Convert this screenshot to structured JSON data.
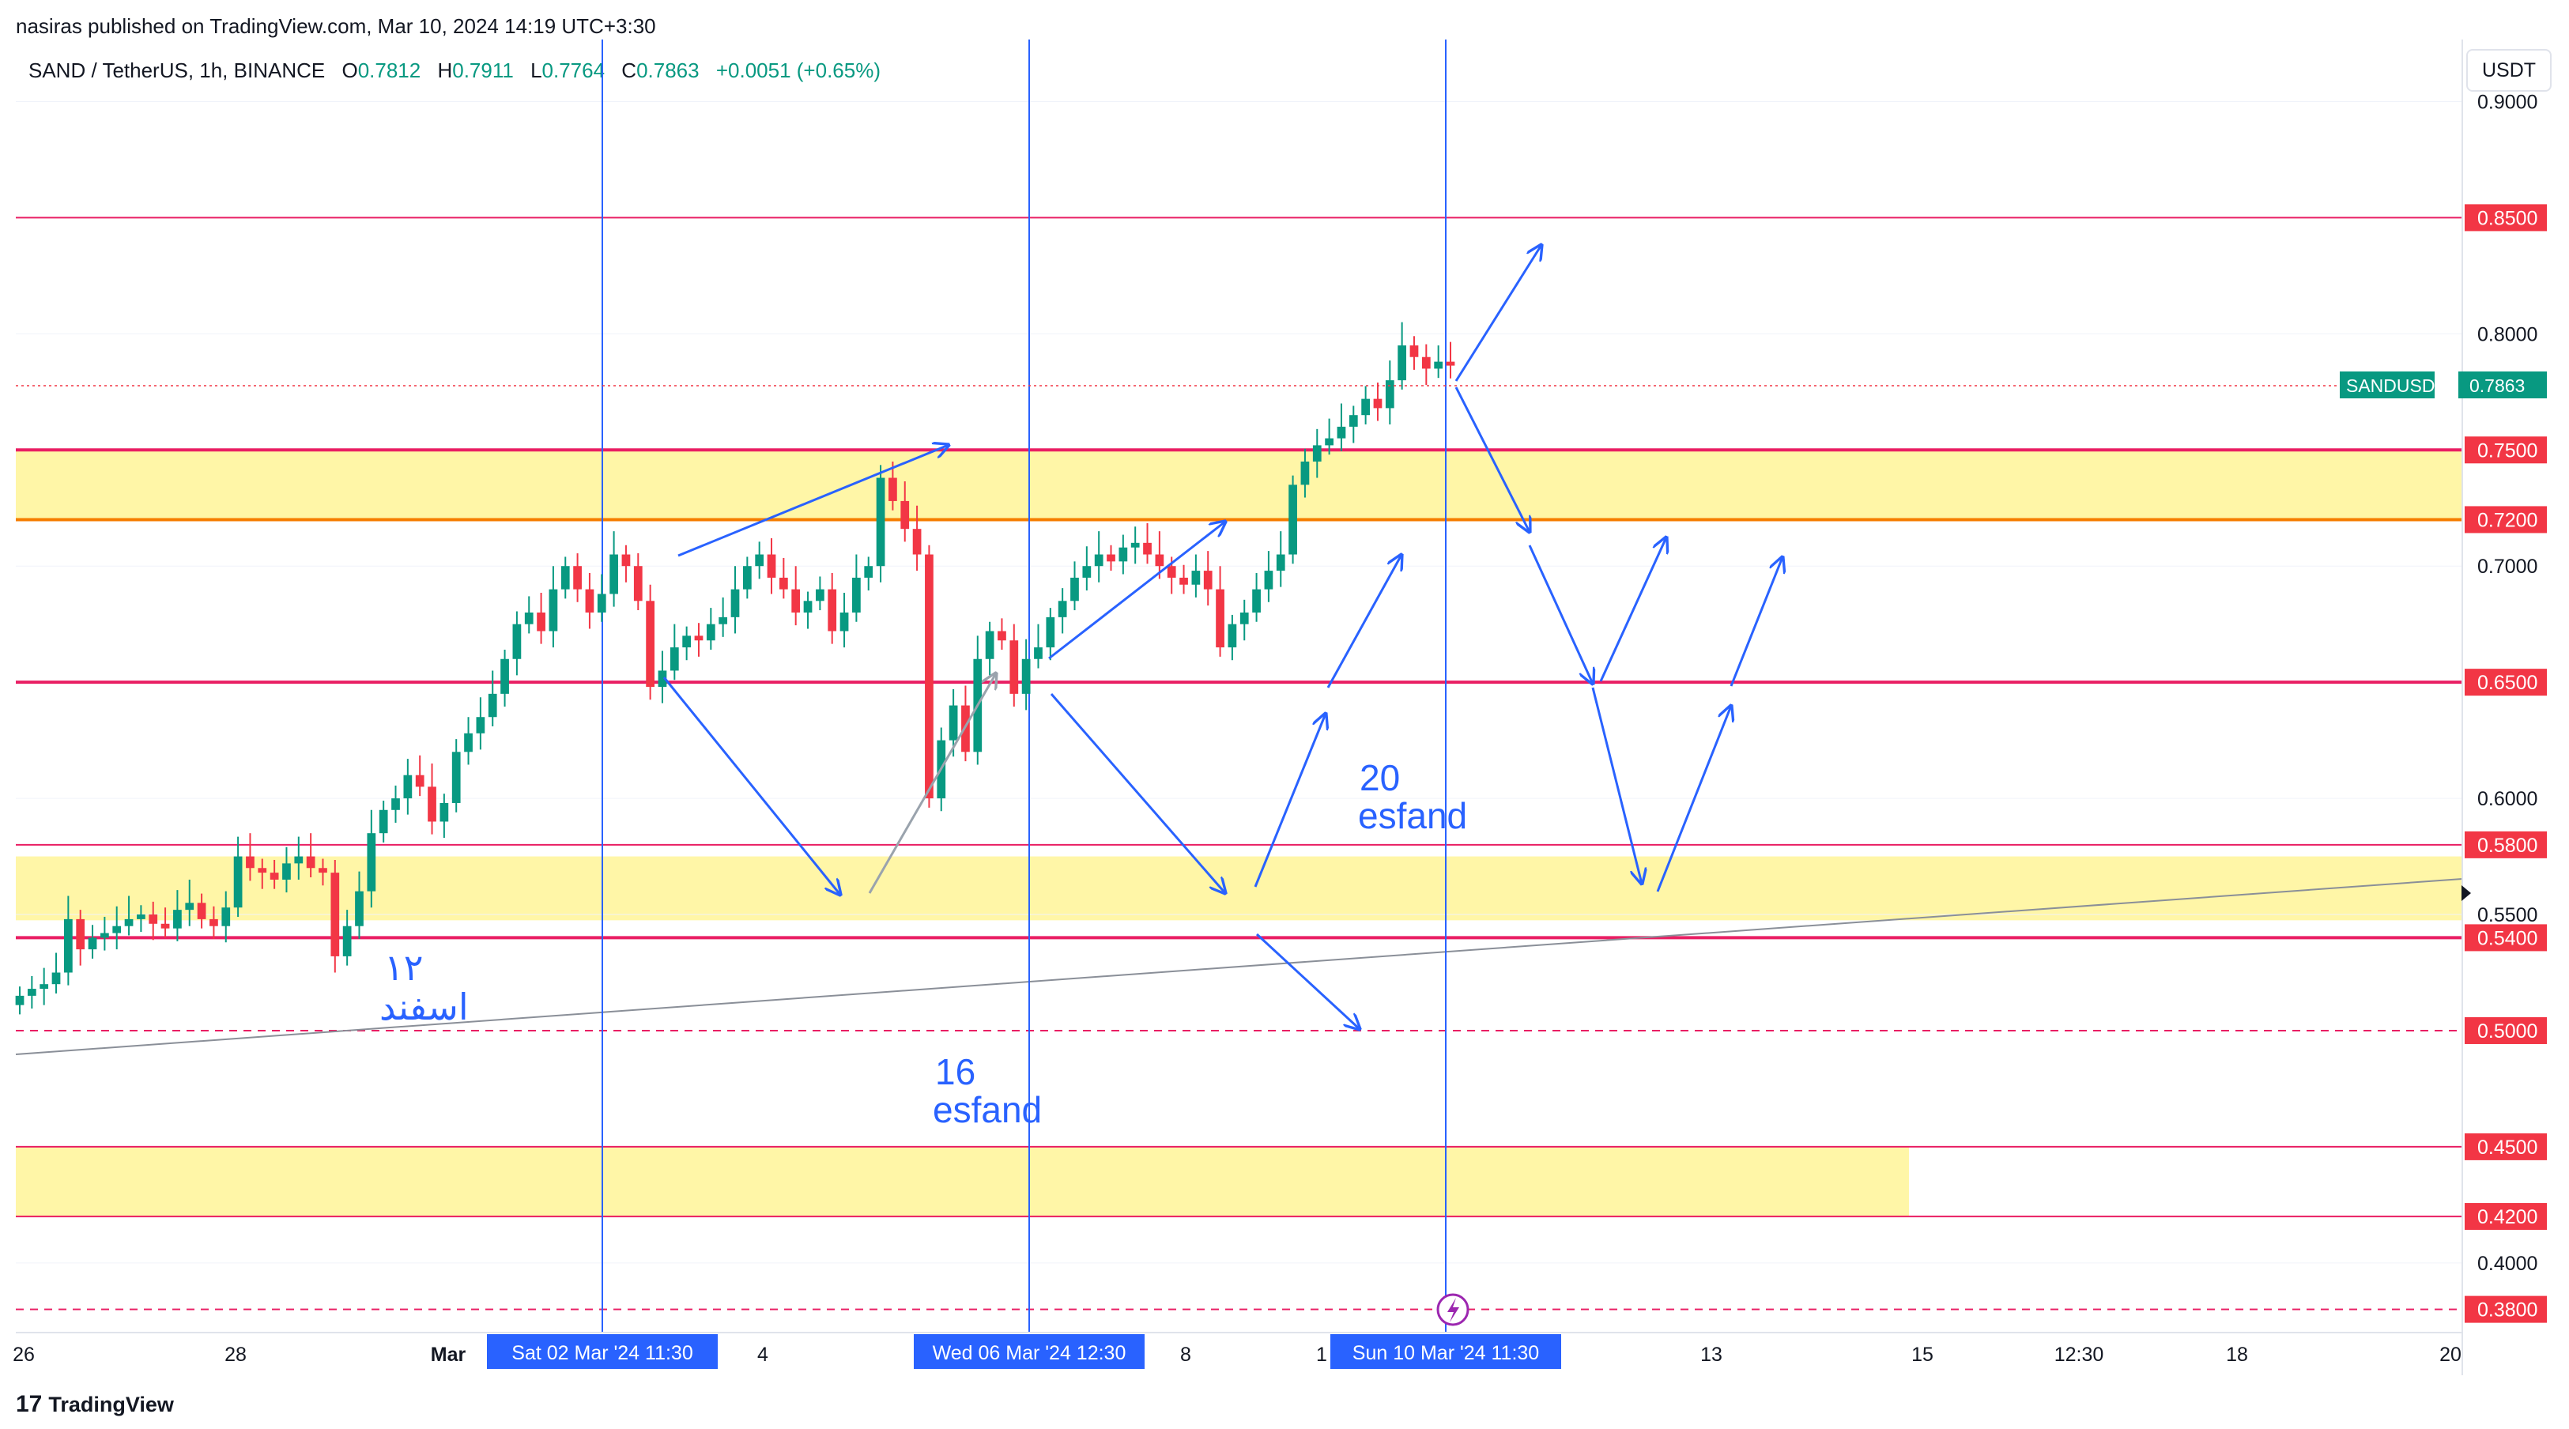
{
  "header": {
    "publisher": "nasiras published on TradingView.com, Mar 10, 2024 14:19 UTC+3:30"
  },
  "legend": {
    "symbol": "SAND / TetherUS, 1h, BINANCE",
    "open_label": "O",
    "open": "0.7812",
    "high_label": "H",
    "high": "0.7911",
    "low_label": "L",
    "low": "0.7764",
    "close_label": "C",
    "close": "0.7863",
    "change": "+0.0051 (+0.65%)"
  },
  "currency_button": "USDT",
  "brand": {
    "logo": "17",
    "name": "TradingView"
  },
  "colors": {
    "up": "#089981",
    "down": "#f23645",
    "level": "#e91e63",
    "zone": "#fff59d",
    "drawing": "#2962ff",
    "axis_label_bg": "#f23645"
  },
  "chart_data": {
    "type": "candlestick",
    "symbol": "SANDUSDT",
    "interval": "1h",
    "ylim": [
      0.37,
      0.925
    ],
    "x_tick_labels": [
      "26",
      "28",
      "Mar",
      "4",
      "8",
      "1",
      "13",
      "15",
      "12:30",
      "18",
      "20"
    ],
    "y_tick_labels": [
      "0.9000",
      "0.8000",
      "0.7000",
      "0.6000",
      "0.5500",
      "0.4000"
    ],
    "price_levels": [
      {
        "label": "0.8500",
        "value": 0.85,
        "style": "solid"
      },
      {
        "label": "0.7500",
        "value": 0.75,
        "style": "solid"
      },
      {
        "label": "0.7200",
        "value": 0.72,
        "style": "solid"
      },
      {
        "label": "0.6500",
        "value": 0.65,
        "style": "solid"
      },
      {
        "label": "0.5800",
        "value": 0.58,
        "style": "solid"
      },
      {
        "label": "0.5400",
        "value": 0.54,
        "style": "solid"
      },
      {
        "label": "0.5000",
        "value": 0.5,
        "style": "dashed"
      },
      {
        "label": "0.4500",
        "value": 0.45,
        "style": "solid"
      },
      {
        "label": "0.4200",
        "value": 0.42,
        "style": "solid"
      },
      {
        "label": "0.3800",
        "value": 0.38,
        "style": "dashed"
      }
    ],
    "zones": [
      {
        "from": 0.72,
        "to": 0.75,
        "extent": "full"
      },
      {
        "from": 0.5475,
        "to": 0.575,
        "extent": "full"
      },
      {
        "from": 0.42,
        "to": 0.45,
        "extent": "partial"
      }
    ],
    "current_price": {
      "label": "SANDUSDT",
      "value": "0.7863",
      "y": 0.7863
    },
    "vertical_markers": [
      {
        "label": "Sat 02 Mar '24   11:30"
      },
      {
        "label": "Wed 06 Mar '24   12:30"
      },
      {
        "label": "Sun 10 Mar '24   11:30"
      }
    ],
    "annotations": [
      {
        "line1": "۱۲",
        "line2": "اسفند"
      },
      {
        "line1": "16",
        "line2": "esfand"
      },
      {
        "line1": "20",
        "line2": "esfand"
      }
    ],
    "candles_closes": [
      0.515,
      0.518,
      0.52,
      0.525,
      0.548,
      0.535,
      0.54,
      0.542,
      0.545,
      0.548,
      0.55,
      0.546,
      0.544,
      0.552,
      0.555,
      0.548,
      0.545,
      0.553,
      0.575,
      0.57,
      0.568,
      0.565,
      0.572,
      0.575,
      0.57,
      0.568,
      0.532,
      0.545,
      0.56,
      0.585,
      0.595,
      0.6,
      0.61,
      0.605,
      0.59,
      0.598,
      0.62,
      0.628,
      0.635,
      0.645,
      0.66,
      0.675,
      0.68,
      0.672,
      0.69,
      0.7,
      0.69,
      0.68,
      0.688,
      0.705,
      0.7,
      0.685,
      0.648,
      0.655,
      0.665,
      0.67,
      0.668,
      0.675,
      0.678,
      0.69,
      0.7,
      0.705,
      0.695,
      0.69,
      0.68,
      0.685,
      0.69,
      0.672,
      0.68,
      0.695,
      0.7,
      0.738,
      0.728,
      0.716,
      0.705,
      0.6,
      0.625,
      0.64,
      0.62,
      0.66,
      0.672,
      0.668,
      0.645,
      0.66,
      0.665,
      0.678,
      0.685,
      0.695,
      0.7,
      0.705,
      0.702,
      0.708,
      0.71,
      0.705,
      0.7,
      0.695,
      0.692,
      0.698,
      0.69,
      0.665,
      0.675,
      0.68,
      0.69,
      0.698,
      0.705,
      0.735,
      0.745,
      0.752,
      0.755,
      0.76,
      0.765,
      0.772,
      0.768,
      0.78,
      0.795,
      0.79,
      0.785,
      0.788,
      0.7863
    ]
  }
}
